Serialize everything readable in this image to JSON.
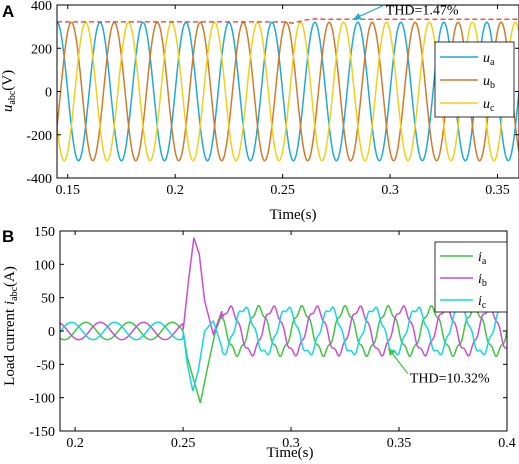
{
  "chart_data": [
    {
      "panel_label": "A",
      "type": "line",
      "xlabel": "Time(s)",
      "ylabel_main": "u",
      "ylabel_sub": "abc",
      "ylabel_unit": "(V)",
      "xlim": [
        0.145,
        0.36
      ],
      "ylim": [
        -400,
        400
      ],
      "xticks": [
        "0.15",
        "0.2",
        "0.25",
        "0.3",
        "0.35"
      ],
      "xtick_values": [
        0.15,
        0.2,
        0.25,
        0.3,
        0.35
      ],
      "yticks": [
        "400",
        "200",
        "0",
        "-200",
        "-400"
      ],
      "ytick_values": [
        400,
        200,
        0,
        -200,
        -400
      ],
      "frequency_hz": 50,
      "series": [
        {
          "name_main": "u",
          "name_sub": "a",
          "color": "#1fa9d8",
          "phase_deg": 0,
          "amplitude_before": 320,
          "amplitude_after": 320
        },
        {
          "name_main": "u",
          "name_sub": "b",
          "color": "#d07b2a",
          "phase_deg": -120,
          "amplitude_before": 320,
          "amplitude_after": 320
        },
        {
          "name_main": "u",
          "name_sub": "c",
          "color": "#f2cf1a",
          "phase_deg": 120,
          "amplitude_before": 320,
          "amplitude_after": 320
        }
      ],
      "envelope": {
        "color": "#e03a2a",
        "points": [
          [
            0.145,
            322
          ],
          [
            0.25,
            322
          ],
          [
            0.255,
            316
          ],
          [
            0.26,
            330
          ],
          [
            0.265,
            336
          ],
          [
            0.27,
            334
          ],
          [
            0.36,
            334
          ]
        ]
      },
      "annotation": {
        "text": "THD=1.47%",
        "arrow_to": [
          0.283,
          335
        ],
        "text_at": [
          0.298,
          380
        ],
        "color": "#1fa9d8"
      },
      "legend_position": "right"
    },
    {
      "panel_label": "B",
      "type": "line",
      "xlabel": "Time(s)",
      "ylabel_main": "Load current ",
      "ylabel_italic": "i",
      "ylabel_sub": "abc",
      "ylabel_unit": "(A)",
      "xlim": [
        0.193,
        0.4
      ],
      "ylim": [
        -150,
        150
      ],
      "xticks": [
        "0.2",
        "0.25",
        "0.3",
        "0.35",
        "0.4"
      ],
      "xtick_values": [
        0.2,
        0.25,
        0.3,
        0.35,
        0.4
      ],
      "yticks": [
        "150",
        "100",
        "50",
        "0",
        "-50",
        "-100",
        "-150"
      ],
      "ytick_values": [
        150,
        100,
        50,
        0,
        -50,
        -100,
        -150
      ],
      "frequency_hz": 50,
      "step_time": 0.25,
      "series": [
        {
          "name_main": "i",
          "name_sub": "a",
          "color": "#3fc63f",
          "phase_deg": 0,
          "amplitude_before": 13,
          "amplitude_after": 34,
          "transient": [
            [
              0.25,
              0
            ],
            [
              0.252,
              -40
            ],
            [
              0.2555,
              -80
            ],
            [
              0.258,
              -108
            ],
            [
              0.261,
              -60
            ],
            [
              0.265,
              0
            ],
            [
              0.268,
              25
            ]
          ]
        },
        {
          "name_main": "i",
          "name_sub": "b",
          "color": "#c64fd4",
          "phase_deg": -120,
          "amplitude_before": 13,
          "amplitude_after": 34,
          "transient": [
            [
              0.25,
              0
            ],
            [
              0.2525,
              75
            ],
            [
              0.255,
              140
            ],
            [
              0.2575,
              115
            ],
            [
              0.26,
              45
            ],
            [
              0.264,
              -5
            ],
            [
              0.268,
              30
            ]
          ]
        },
        {
          "name_main": "i",
          "name_sub": "c",
          "color": "#15d6e0",
          "phase_deg": 120,
          "amplitude_before": 13,
          "amplitude_after": 34,
          "transient": [
            [
              0.25,
              0
            ],
            [
              0.252,
              -50
            ],
            [
              0.2545,
              -90
            ],
            [
              0.257,
              -60
            ],
            [
              0.26,
              0
            ],
            [
              0.264,
              15
            ],
            [
              0.268,
              -25
            ]
          ]
        }
      ],
      "annotation": {
        "text": "THD=10.32%",
        "arrow_to": [
          0.345,
          -26
        ],
        "text_at": [
          0.355,
          -70
        ],
        "color": "#3fc63f"
      },
      "legend_position": "top-right"
    }
  ]
}
